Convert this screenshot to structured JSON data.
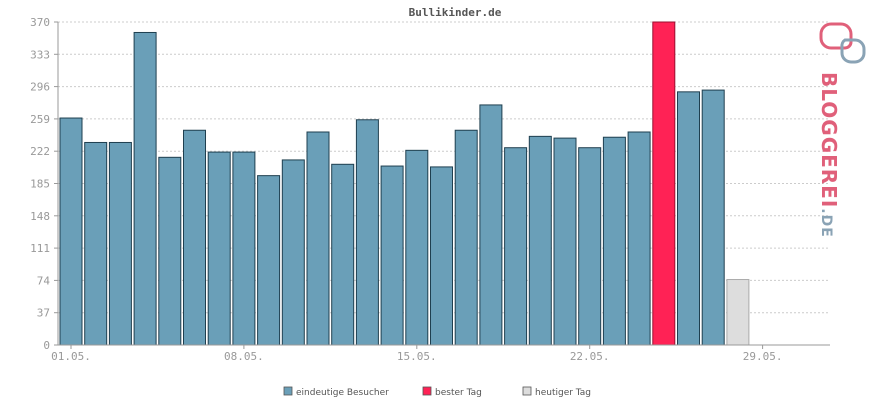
{
  "chart_data": {
    "type": "bar",
    "title": "Bullikinder.de",
    "ylim": [
      0,
      370
    ],
    "yticks": [
      "0",
      "37",
      "74",
      "111",
      "148",
      "185",
      "222",
      "259",
      "296",
      "333",
      "370"
    ],
    "xtick_labels": [
      {
        "index": 0,
        "label": "01.05."
      },
      {
        "index": 7,
        "label": "08.05."
      },
      {
        "index": 14,
        "label": "15.05."
      },
      {
        "index": 21,
        "label": "22.05."
      },
      {
        "index": 28,
        "label": "29.05."
      }
    ],
    "grid": true,
    "legend_placement": "bottom",
    "series": [
      {
        "name": "eindeutige Besucher",
        "color": "#6a9fb8",
        "values": [
          260,
          232,
          232,
          358,
          215,
          246,
          221,
          221,
          194,
          212,
          244,
          207,
          258,
          205,
          223,
          204,
          246,
          275,
          226,
          239,
          237,
          226,
          238,
          244,
          370,
          290,
          292,
          75
        ]
      },
      {
        "name": "bester Tag",
        "color": "#ff2255",
        "index": 24
      },
      {
        "name": "heutiger Tag",
        "color": "#dddddd",
        "index": 27
      }
    ]
  },
  "legend": [
    {
      "label": "eindeutige Besucher",
      "color": "#6a9fb8"
    },
    {
      "label": "bester Tag",
      "color": "#ff2255"
    },
    {
      "label": "heutiger Tag",
      "color": "#dddddd"
    }
  ],
  "logo": {
    "main": "BLOGGEREI",
    "suffix": ".DE"
  }
}
